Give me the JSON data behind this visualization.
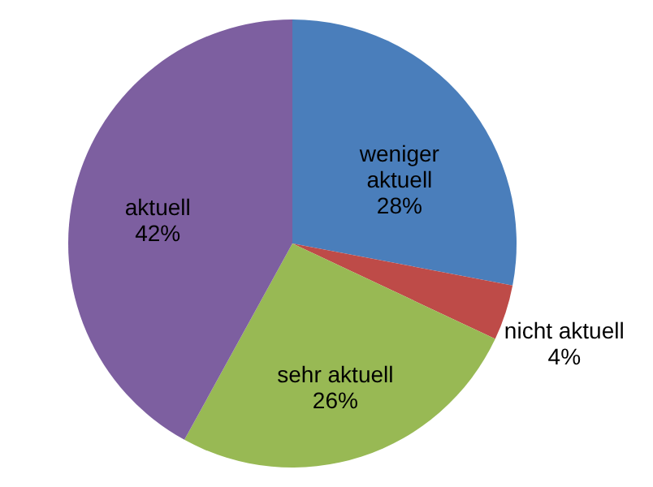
{
  "chart_data": {
    "type": "pie",
    "categories": [
      "weniger aktuell",
      "nicht aktuell",
      "sehr aktuell",
      "aktuell"
    ],
    "values": [
      28,
      4,
      26,
      42
    ],
    "value_labels": [
      "28%",
      "4%",
      "26%",
      "42%"
    ],
    "colors": [
      "#4a7ebb",
      "#be4b48",
      "#98b954",
      "#7d5fa0"
    ]
  }
}
